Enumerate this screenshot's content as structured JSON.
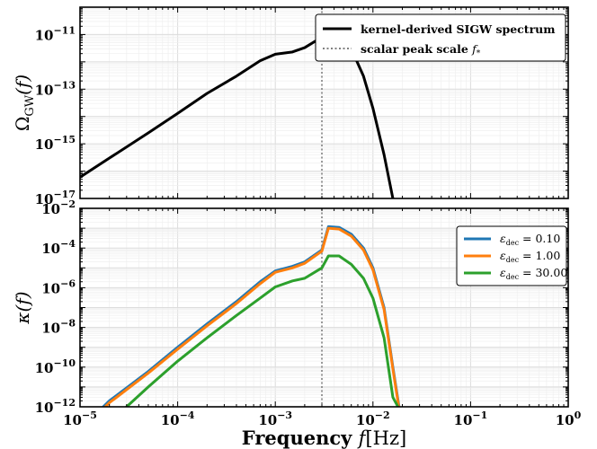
{
  "chart_data": [
    {
      "type": "line",
      "xscale": "log",
      "yscale": "log",
      "xlim": [
        1e-05,
        1
      ],
      "ylim": [
        1e-17,
        1e-10
      ],
      "xlabel": "",
      "ylabel": "Ω_GW(f)",
      "xticks": [
        "10^-5",
        "10^-4",
        "10^-3",
        "10^-2",
        "10^-1",
        "10^0"
      ],
      "yticks": [
        {
          "value": 1e-11,
          "base": "10",
          "exp": "−11"
        },
        {
          "value": 1e-13,
          "base": "10",
          "exp": "−13"
        },
        {
          "value": 1e-15,
          "base": "10",
          "exp": "−15"
        },
        {
          "value": 1e-17,
          "base": "10",
          "exp": "−17"
        }
      ],
      "grid": true,
      "legend_position": "top-right",
      "vline": {
        "x": 0.003,
        "label": "scalar peak scale f*",
        "color": "#808080"
      },
      "series": [
        {
          "name": "kernel-derived SIGW spectrum",
          "color": "#000000",
          "x": [
            1e-05,
            2e-05,
            5e-05,
            0.0001,
            0.0002,
            0.0004,
            0.0007,
            0.001,
            0.0015,
            0.002,
            0.003,
            0.0035,
            0.0045,
            0.006,
            0.008,
            0.01,
            0.013,
            0.016,
            0.02
          ],
          "y": [
            6e-17,
            3e-16,
            2.5e-15,
            1.3e-14,
            7e-14,
            3e-13,
            1.1e-12,
            1.9e-12,
            2.3e-12,
            3.3e-12,
            8e-12,
            9.5e-12,
            8e-12,
            3e-12,
            3e-13,
            2e-14,
            4e-16,
            1e-17,
            5e-18
          ]
        }
      ]
    },
    {
      "type": "line",
      "xscale": "log",
      "yscale": "log",
      "xlim": [
        1e-05,
        1
      ],
      "ylim": [
        1e-12,
        0.01
      ],
      "xlabel": "Frequency f[Hz]",
      "ylabel": "κ(f)",
      "xticks": [
        {
          "value": 1e-05,
          "base": "10",
          "exp": "−5"
        },
        {
          "value": 0.0001,
          "base": "10",
          "exp": "−4"
        },
        {
          "value": 0.001,
          "base": "10",
          "exp": "−3"
        },
        {
          "value": 0.01,
          "base": "10",
          "exp": "−2"
        },
        {
          "value": 0.1,
          "base": "10",
          "exp": "−1"
        },
        {
          "value": 1,
          "base": "10",
          "exp": "0"
        }
      ],
      "yticks": [
        {
          "value": 0.01,
          "base": "10",
          "exp": "−2"
        },
        {
          "value": 0.0001,
          "base": "10",
          "exp": "−4"
        },
        {
          "value": 1e-06,
          "base": "10",
          "exp": "−6"
        },
        {
          "value": 1e-08,
          "base": "10",
          "exp": "−8"
        },
        {
          "value": 1e-10,
          "base": "10",
          "exp": "−10"
        },
        {
          "value": 1e-12,
          "base": "10",
          "exp": "−12"
        }
      ],
      "grid": true,
      "legend_position": "top-right",
      "vline": {
        "x": 0.003,
        "color": "#808080"
      },
      "series": [
        {
          "name": "ε_dec = 0.10",
          "color": "#1f77b4",
          "x": [
            1.5e-05,
            2e-05,
            5e-05,
            0.0001,
            0.0002,
            0.0004,
            0.0007,
            0.001,
            0.0015,
            0.002,
            0.003,
            0.0035,
            0.0045,
            0.006,
            0.008,
            0.01,
            0.013,
            0.016,
            0.0185
          ],
          "y": [
            5e-13,
            2e-12,
            6e-11,
            1e-09,
            1.5e-08,
            2e-07,
            2e-06,
            7e-06,
            1.2e-05,
            2e-05,
            8e-05,
            0.0012,
            0.0011,
            0.0005,
            0.0001,
            1e-05,
            1e-07,
            1e-10,
            1e-12
          ]
        },
        {
          "name": "ε_dec = 1.00",
          "color": "#ff7f0e",
          "x": [
            1.5e-05,
            2e-05,
            5e-05,
            0.0001,
            0.0002,
            0.0004,
            0.0007,
            0.001,
            0.0015,
            0.002,
            0.003,
            0.0035,
            0.0045,
            0.006,
            0.008,
            0.01,
            0.013,
            0.016,
            0.0185
          ],
          "y": [
            4e-13,
            1.6e-12,
            5e-11,
            8e-10,
            1.2e-08,
            1.6e-07,
            1.6e-06,
            6e-06,
            1e-05,
            1.7e-05,
            7e-05,
            0.001,
            0.0009,
            0.0004,
            8e-05,
            8e-06,
            8e-08,
            8e-11,
            8e-13
          ]
        },
        {
          "name": "ε_dec = 30.00",
          "color": "#2ca02c",
          "x": [
            3e-05,
            5e-05,
            0.0001,
            0.0002,
            0.0004,
            0.0007,
            0.001,
            0.0015,
            0.002,
            0.003,
            0.0035,
            0.0045,
            0.006,
            0.008,
            0.01,
            0.013,
            0.016,
            0.0185
          ],
          "y": [
            1e-12,
            1e-11,
            2e-10,
            3e-09,
            4e-08,
            3e-07,
            1.1e-06,
            2.2e-06,
            3e-06,
            1e-05,
            4e-05,
            4e-05,
            1.5e-05,
            3e-06,
            3e-07,
            3e-09,
            3e-12,
            8e-13
          ]
        }
      ]
    }
  ]
}
